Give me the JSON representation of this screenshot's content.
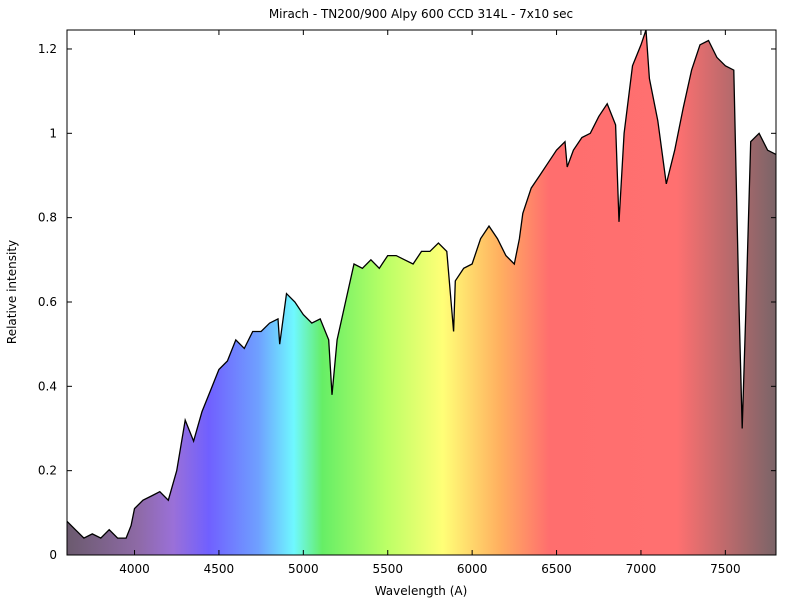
{
  "chart_data": {
    "type": "line",
    "title": "Mirach - TN200/900 Alpy 600 CCD 314L - 7x10 sec",
    "x_label": "Wavelength (A)",
    "y_label": "Relative intensity",
    "x": [
      3600,
      3650,
      3700,
      3750,
      3800,
      3850,
      3900,
      3950,
      3980,
      4000,
      4050,
      4100,
      4150,
      4200,
      4250,
      4300,
      4350,
      4400,
      4450,
      4500,
      4550,
      4600,
      4650,
      4700,
      4750,
      4800,
      4850,
      4860,
      4900,
      4950,
      5000,
      5050,
      5100,
      5150,
      5170,
      5200,
      5250,
      5300,
      5350,
      5400,
      5450,
      5500,
      5550,
      5600,
      5650,
      5700,
      5750,
      5800,
      5850,
      5890,
      5900,
      5950,
      6000,
      6050,
      6100,
      6150,
      6200,
      6250,
      6280,
      6300,
      6350,
      6400,
      6450,
      6500,
      6550,
      6563,
      6600,
      6650,
      6700,
      6750,
      6800,
      6850,
      6870,
      6900,
      6950,
      7000,
      7030,
      7050,
      7100,
      7150,
      7200,
      7250,
      7300,
      7350,
      7400,
      7450,
      7500,
      7550,
      7580,
      7600,
      7620,
      7650,
      7700,
      7750,
      7800
    ],
    "values": [
      0.08,
      0.06,
      0.04,
      0.05,
      0.04,
      0.06,
      0.04,
      0.04,
      0.07,
      0.11,
      0.13,
      0.14,
      0.15,
      0.13,
      0.2,
      0.32,
      0.27,
      0.34,
      0.39,
      0.44,
      0.46,
      0.51,
      0.49,
      0.53,
      0.53,
      0.55,
      0.56,
      0.5,
      0.62,
      0.6,
      0.57,
      0.55,
      0.56,
      0.51,
      0.38,
      0.51,
      0.6,
      0.69,
      0.68,
      0.7,
      0.68,
      0.71,
      0.71,
      0.7,
      0.69,
      0.72,
      0.72,
      0.74,
      0.72,
      0.53,
      0.65,
      0.68,
      0.69,
      0.75,
      0.78,
      0.75,
      0.71,
      0.69,
      0.75,
      0.81,
      0.87,
      0.9,
      0.93,
      0.96,
      0.98,
      0.92,
      0.96,
      0.99,
      1.0,
      1.04,
      1.07,
      1.02,
      0.79,
      1.0,
      1.16,
      1.21,
      1.245,
      1.13,
      1.03,
      0.88,
      0.96,
      1.06,
      1.15,
      1.21,
      1.22,
      1.18,
      1.16,
      1.15,
      0.6,
      0.3,
      0.56,
      0.98,
      1.0,
      0.96,
      0.95
    ],
    "color": "#000000",
    "xlim": [
      3600,
      7800
    ],
    "xticks": [
      4000,
      4500,
      5000,
      5500,
      6000,
      6500,
      7000,
      7500
    ],
    "ylim": [
      0,
      1.245
    ],
    "yticks": [
      0,
      0.2,
      0.4,
      0.6,
      0.8,
      1,
      1.2
    ],
    "grid": false
  }
}
